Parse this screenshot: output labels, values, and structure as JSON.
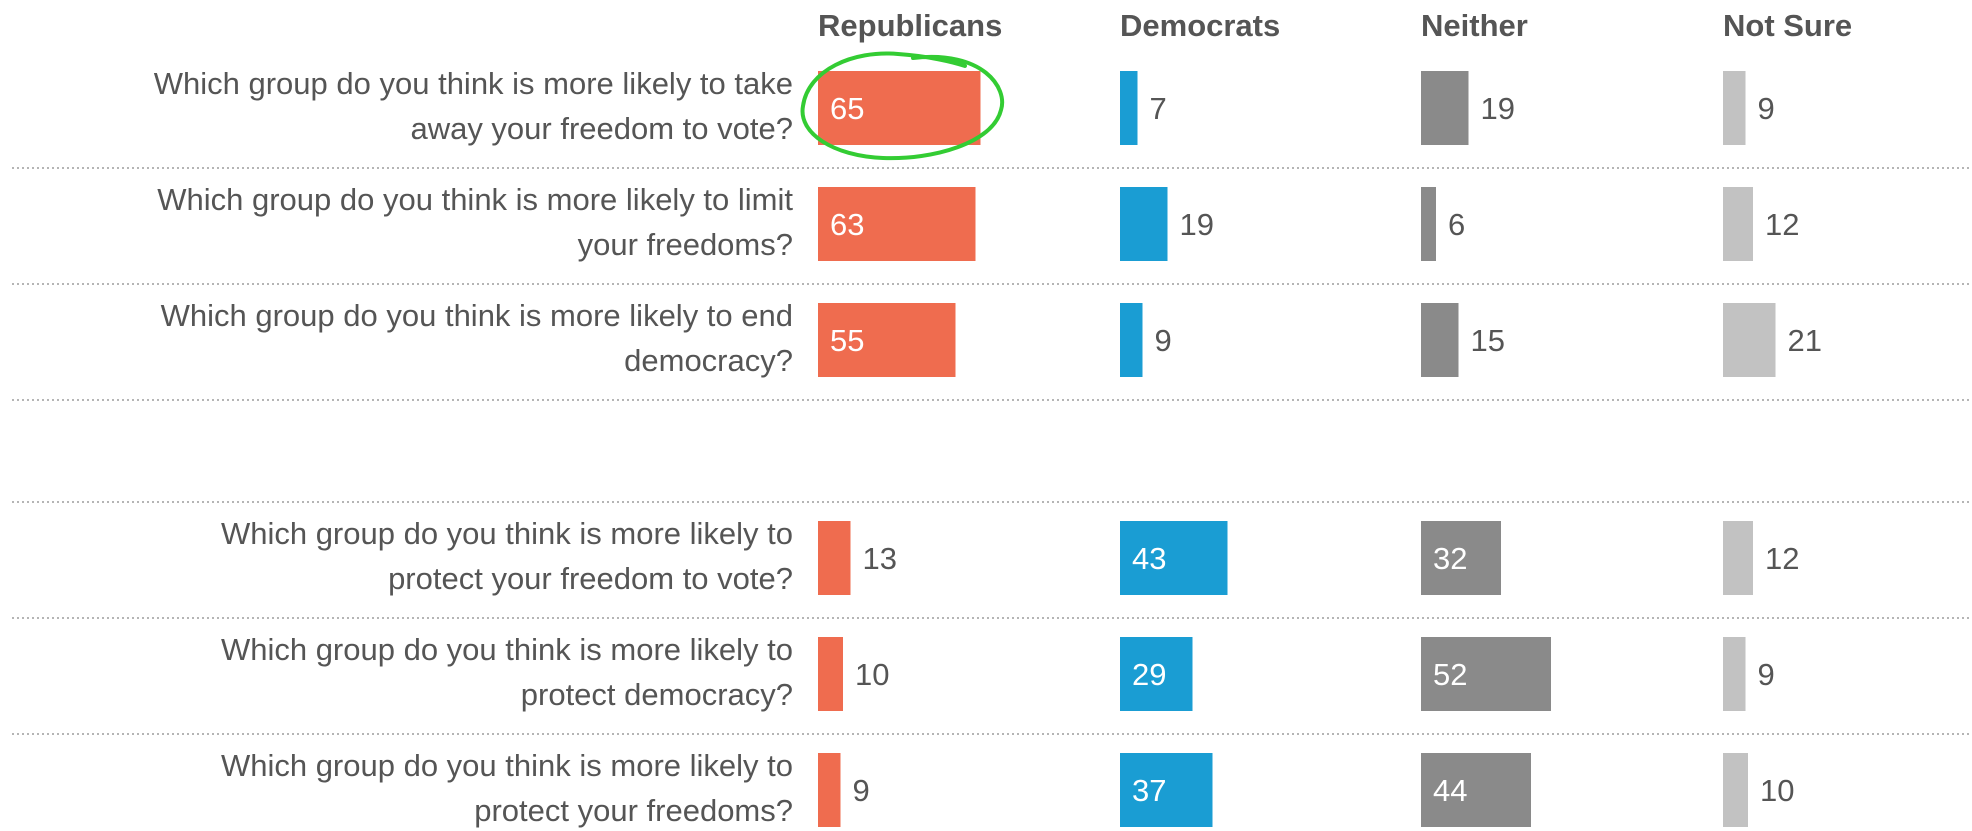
{
  "chart_data": {
    "type": "bar",
    "orientation": "horizontal",
    "layout": "small-multiples",
    "columns": [
      "Republicans",
      "Democrats",
      "Neither",
      "Not Sure"
    ],
    "colors": [
      "#ef6c4f",
      "#1a9dd3",
      "#8a8a8a",
      "#c2c2c2"
    ],
    "groups": [
      {
        "rows": [
          {
            "question_lines": [
              "Which group do you think is more likely to take",
              "away your freedom to vote?"
            ],
            "values": [
              65,
              7,
              19,
              9
            ]
          },
          {
            "question_lines": [
              "Which group do you think is more likely to limit",
              "your freedoms?"
            ],
            "values": [
              63,
              19,
              6,
              12
            ]
          },
          {
            "question_lines": [
              "Which group do you think is more likely to end",
              "democracy?"
            ],
            "values": [
              55,
              9,
              15,
              21
            ]
          }
        ]
      },
      {
        "rows": [
          {
            "question_lines": [
              "Which group do you think is more likely to",
              "protect your freedom to vote?"
            ],
            "values": [
              13,
              43,
              32,
              12
            ]
          },
          {
            "question_lines": [
              "Which group do you think is more likely to",
              "protect democracy?"
            ],
            "values": [
              10,
              29,
              52,
              9
            ]
          },
          {
            "question_lines": [
              "Which group do you think is more likely to",
              "protect your freedoms?"
            ],
            "values": [
              9,
              37,
              44,
              10
            ]
          }
        ]
      }
    ],
    "highlight": {
      "group": 0,
      "row": 0,
      "column": 0,
      "color": "#33cc33",
      "shape": "hand-drawn-circle"
    }
  }
}
